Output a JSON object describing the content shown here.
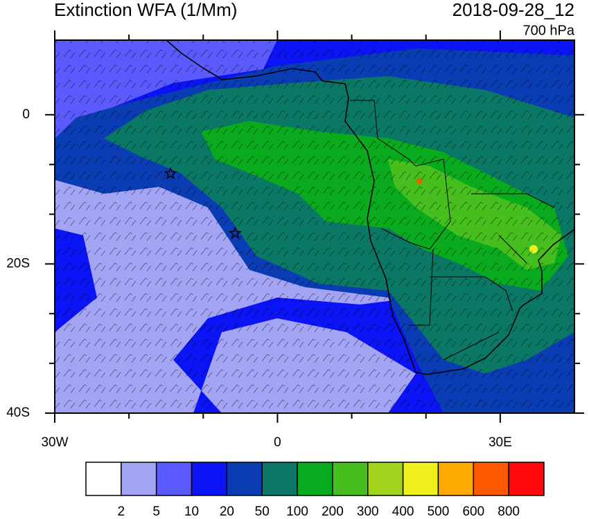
{
  "header": {
    "title": "Extinction WFA (1/Mm)",
    "date": "2018-09-28_12",
    "level": "700 hPa"
  },
  "map": {
    "lon_range": [
      -30,
      40
    ],
    "lat_range": [
      -40,
      10
    ],
    "lon_ticks": [
      {
        "value": -30,
        "label": "30W"
      },
      0,
      {
        "value": 30,
        "label": "30E"
      }
    ],
    "lat_ticks": [
      {
        "value": -40,
        "label": "40S"
      },
      {
        "value": -20,
        "label": "20S"
      },
      0
    ],
    "markers": [
      {
        "lon": -14.4,
        "lat": -7.9
      },
      {
        "lon": -5.7,
        "lat": -15.9
      }
    ]
  },
  "colorbar": {
    "levels": [
      2,
      5,
      10,
      20,
      50,
      100,
      200,
      300,
      400,
      500,
      600,
      800
    ],
    "colors": [
      "#ffffff",
      "#a4a4f4",
      "#5a5aff",
      "#0a14f5",
      "#0a3cb4",
      "#0a7864",
      "#0aaa1e",
      "#46be1e",
      "#a0d21e",
      "#f0f01e",
      "#ffaa00",
      "#ff5a00",
      "#ff0a0a"
    ]
  }
}
